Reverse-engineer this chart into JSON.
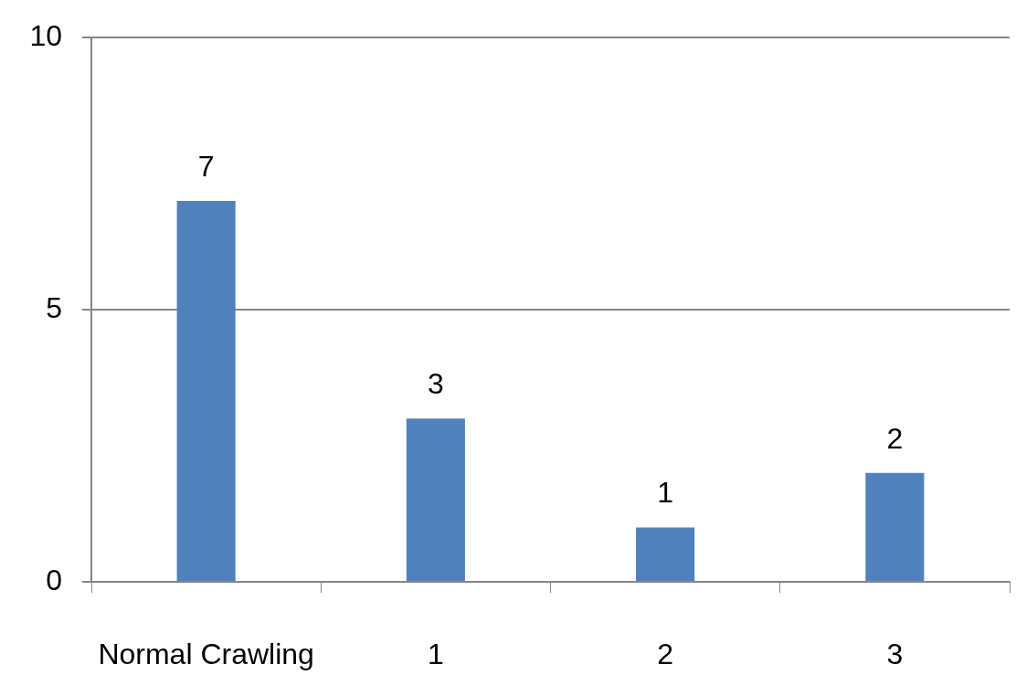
{
  "chart_data": {
    "type": "bar",
    "categories": [
      "Normal Crawling",
      "1",
      "2",
      "3"
    ],
    "values": [
      7,
      3,
      1,
      2
    ],
    "color": "#4f81bd",
    "ylim": [
      0,
      10
    ],
    "yticks": [
      0,
      5,
      10
    ],
    "grid": "y",
    "legend": false,
    "data_labels": true
  }
}
